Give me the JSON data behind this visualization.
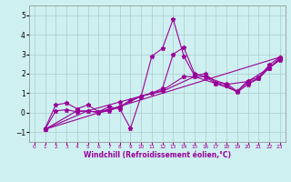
{
  "xlabel": "Windchill (Refroidissement éolien,°C)",
  "background_color": "#cff0f0",
  "grid_color": "#aacccc",
  "line_color": "#990099",
  "xlim": [
    -0.5,
    23.5
  ],
  "ylim": [
    -1.5,
    5.5
  ],
  "xticks": [
    0,
    1,
    2,
    3,
    4,
    5,
    6,
    7,
    8,
    9,
    10,
    11,
    12,
    13,
    14,
    15,
    16,
    17,
    18,
    19,
    20,
    21,
    22,
    23
  ],
  "yticks": [
    -1,
    0,
    1,
    2,
    3,
    4,
    5
  ],
  "line1_x": [
    1,
    2,
    3,
    4,
    5,
    6,
    7,
    8,
    9,
    10,
    11,
    12,
    13,
    14,
    15,
    16,
    17,
    18,
    19,
    20,
    21,
    22,
    23
  ],
  "line1_y": [
    -0.8,
    0.4,
    0.5,
    0.2,
    0.4,
    0.05,
    0.3,
    0.2,
    -0.8,
    0.85,
    2.9,
    3.3,
    4.8,
    2.9,
    1.9,
    2.0,
    1.55,
    1.5,
    1.1,
    1.65,
    1.8,
    2.45,
    2.85
  ],
  "line2_x": [
    1,
    2,
    3,
    4,
    5,
    6,
    7,
    8,
    9,
    10,
    11,
    12,
    13,
    14,
    15,
    16,
    17,
    18,
    19,
    20,
    21,
    22,
    23
  ],
  "line2_y": [
    -0.85,
    0.1,
    0.15,
    0.05,
    0.1,
    0.0,
    0.1,
    0.3,
    0.65,
    0.85,
    1.0,
    1.25,
    3.0,
    3.35,
    2.0,
    1.85,
    1.5,
    1.4,
    1.05,
    1.45,
    1.75,
    2.3,
    2.8
  ],
  "line3_x": [
    1,
    23
  ],
  "line3_y": [
    -0.85,
    2.85
  ],
  "line4_x": [
    1,
    5,
    8,
    10,
    12,
    15,
    17,
    19,
    20,
    21,
    22,
    23
  ],
  "line4_y": [
    -0.85,
    0.1,
    0.55,
    0.85,
    1.1,
    1.85,
    1.5,
    1.1,
    1.55,
    1.75,
    2.3,
    2.75
  ],
  "line5_x": [
    1,
    4,
    6,
    8,
    10,
    12,
    14,
    16,
    18,
    20,
    22,
    23
  ],
  "line5_y": [
    -0.85,
    0.1,
    0.05,
    0.3,
    0.85,
    1.15,
    1.85,
    1.85,
    1.45,
    1.6,
    2.3,
    2.7
  ]
}
